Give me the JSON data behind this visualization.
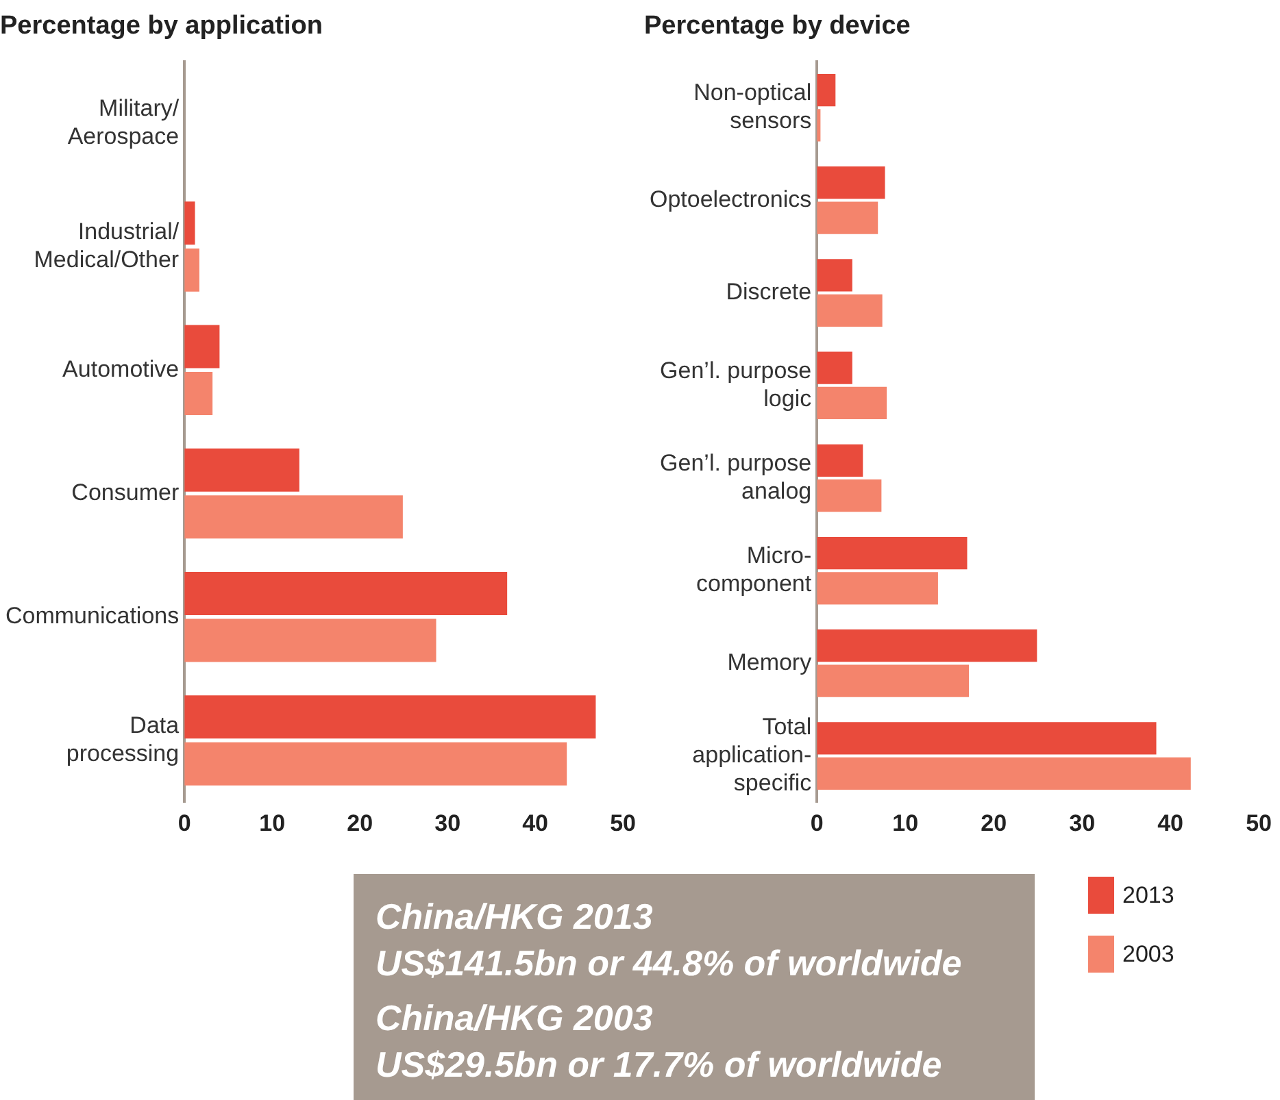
{
  "chart_data": [
    {
      "type": "bar",
      "orientation": "horizontal",
      "title": "Percentage by application",
      "categories": [
        "Military/\nAerospace",
        "Industrial/\nMedical/Other",
        "Automotive",
        "Consumer",
        "Communications",
        "Data\nprocessing"
      ],
      "series": [
        {
          "color": "#e94b3c",
          "values": [
            0,
            1.2,
            4.0,
            13.1,
            36.8,
            46.9
          ]
        },
        {
          "color": "#f4846c",
          "values": [
            0,
            1.7,
            3.2,
            24.9,
            28.7,
            43.6
          ]
        }
      ],
      "xlim": [
        0,
        50
      ],
      "xticks": [
        0,
        10,
        20,
        30,
        40,
        50
      ],
      "grid": false,
      "legend": false,
      "annotations": [
        "China/HKG 2013",
        "US$141.5bn or 44.8% of worldwide",
        "China/HKG 2003",
        "US$29.5bn or 17.7% of worldwide"
      ]
    },
    {
      "type": "bar",
      "orientation": "horizontal",
      "title": "Percentage by device",
      "categories": [
        "Non-optical\nsensors",
        "Optoelectronics",
        "Discrete",
        "Gen’l. purpose\nlogic",
        "Gen’l. purpose\nanalog",
        "Micro-\ncomponent",
        "Memory",
        "Total\napplication-\nspecific"
      ],
      "series": [
        {
          "name": "2013",
          "color": "#e94b3c",
          "values": [
            2.1,
            7.7,
            4.0,
            4.0,
            5.2,
            17.0,
            24.9,
            38.4
          ]
        },
        {
          "name": "2003",
          "color": "#f4846c",
          "values": [
            0.4,
            6.9,
            7.4,
            7.9,
            7.3,
            13.7,
            17.2,
            42.3
          ]
        }
      ],
      "xlim": [
        0,
        50
      ],
      "xticks": [
        0,
        10,
        20,
        30,
        40,
        50
      ],
      "grid": false,
      "legend": "bottom right"
    }
  ]
}
